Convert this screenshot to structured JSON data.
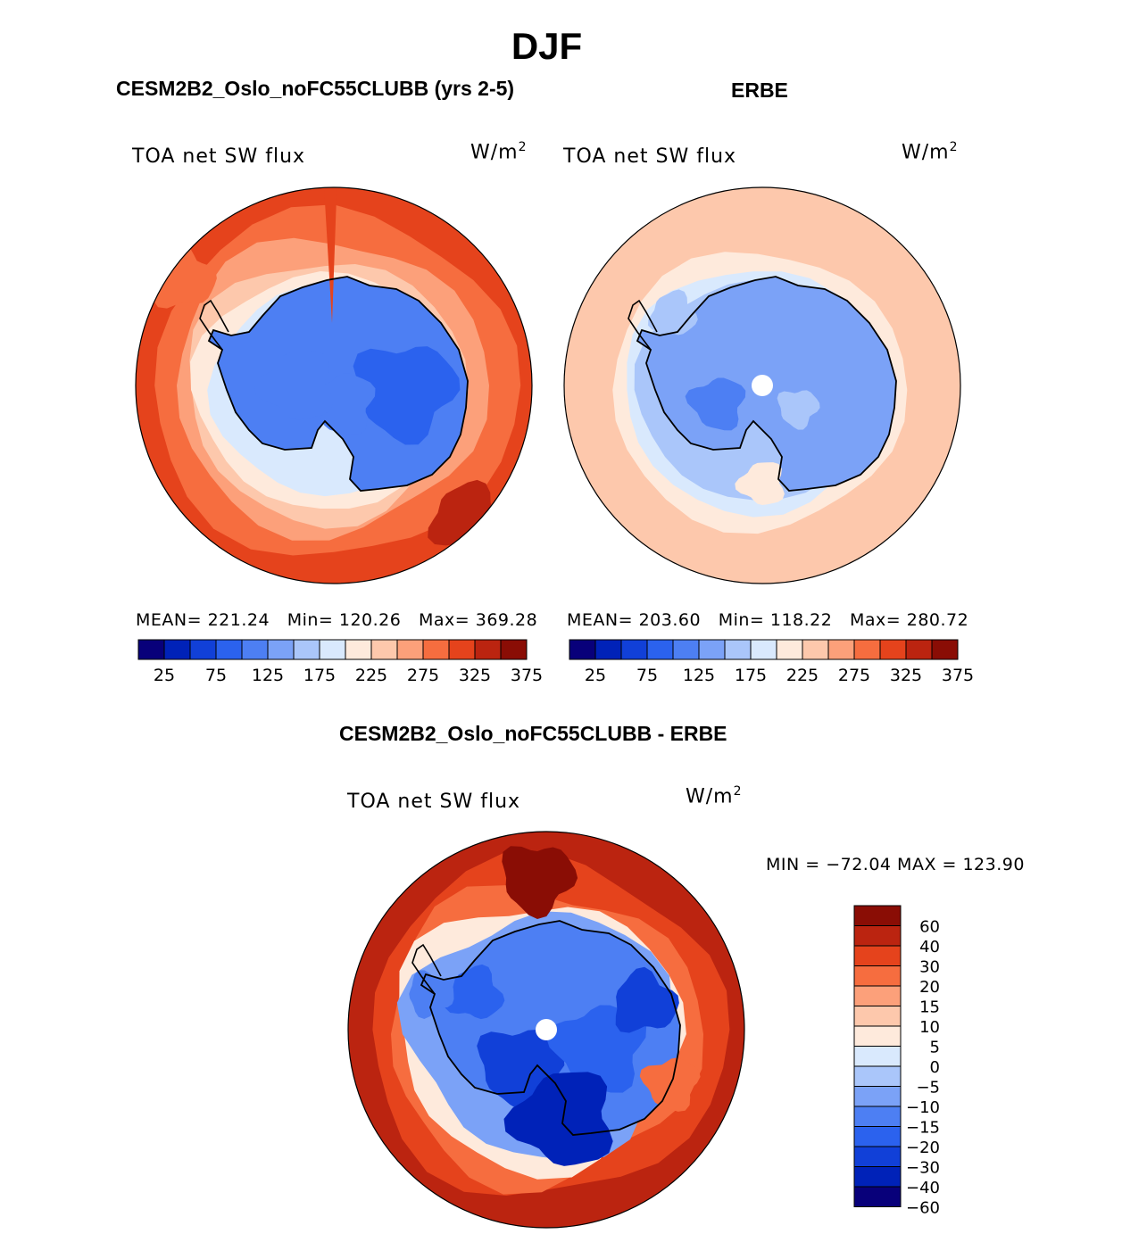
{
  "figure": {
    "season": "DJF",
    "panels": {
      "model": {
        "title": "CESM2B2_Oslo_noFC55CLUBB (yrs 2-5)",
        "variable": "TOA net SW flux",
        "units_base": "W/m",
        "units_exp": "2",
        "stats": {
          "mean_label": "MEAN=",
          "mean": "221.24",
          "min_label": "Min=",
          "min": "120.26",
          "max_label": "Max=",
          "max": "369.28"
        }
      },
      "obs": {
        "title": "ERBE",
        "variable": "TOA net SW flux",
        "units_base": "W/m",
        "units_exp": "2",
        "stats": {
          "mean_label": "MEAN=",
          "mean": "203.60",
          "min_label": "Min=",
          "min": "118.22",
          "max_label": "Max=",
          "max": "280.72"
        }
      },
      "diff": {
        "title": "CESM2B2_Oslo_noFC55CLUBB - ERBE",
        "variable": "TOA net SW flux",
        "units_base": "W/m",
        "units_exp": "2",
        "stats_text": "MIN = −72.04 MAX = 123.90"
      }
    }
  },
  "chart_data": [
    {
      "type": "heatmap",
      "projection": "south-polar-stereographic",
      "title": "CESM2B2_Oslo_noFC55CLUBB (yrs 2-5)",
      "variable": "TOA net SW flux",
      "units": "W/m2",
      "mean": 221.24,
      "min": 120.26,
      "max": 369.28,
      "colorbar": {
        "levels": [
          25,
          50,
          75,
          100,
          125,
          150,
          175,
          200,
          225,
          250,
          275,
          300,
          325,
          350,
          375
        ],
        "tick_labels": [
          "25",
          "75",
          "125",
          "175",
          "225",
          "275",
          "325",
          "375"
        ],
        "colors": [
          "#08007a",
          "#0022b8",
          "#1140d8",
          "#2b62ee",
          "#4d7ff3",
          "#7ba2f7",
          "#aac6fa",
          "#d9e9fd",
          "#feeadc",
          "#fdc8ac",
          "#fca07a",
          "#f66d3f",
          "#e5431c",
          "#bb2410",
          "#8a0d05"
        ]
      },
      "field_regions": [
        {
          "region": "Antarctic interior",
          "value_range": [
            125,
            175
          ]
        },
        {
          "region": "sea-ice margin",
          "value_range": [
            175,
            225
          ]
        },
        {
          "region": "open Southern Ocean",
          "value_range": [
            250,
            350
          ]
        },
        {
          "region": "outer ring (lower latitudes)",
          "value_range": [
            325,
            375
          ]
        }
      ]
    },
    {
      "type": "heatmap",
      "projection": "south-polar-stereographic",
      "title": "ERBE",
      "variable": "TOA net SW flux",
      "units": "W/m2",
      "mean": 203.6,
      "min": 118.22,
      "max": 280.72,
      "colorbar": {
        "levels": [
          25,
          50,
          75,
          100,
          125,
          150,
          175,
          200,
          225,
          250,
          275,
          300,
          325,
          350,
          375
        ],
        "tick_labels": [
          "25",
          "75",
          "125",
          "175",
          "225",
          "275",
          "325",
          "375"
        ],
        "colors": [
          "#08007a",
          "#0022b8",
          "#1140d8",
          "#2b62ee",
          "#4d7ff3",
          "#7ba2f7",
          "#aac6fa",
          "#d9e9fd",
          "#feeadc",
          "#fdc8ac",
          "#fca07a",
          "#f66d3f",
          "#e5431c",
          "#bb2410",
          "#8a0d05"
        ]
      },
      "field_regions": [
        {
          "region": "Antarctic interior",
          "value_range": [
            125,
            175
          ]
        },
        {
          "region": "sea-ice margin",
          "value_range": [
            175,
            225
          ]
        },
        {
          "region": "open Southern Ocean",
          "value_range": [
            225,
            275
          ]
        }
      ]
    },
    {
      "type": "heatmap",
      "projection": "south-polar-stereographic",
      "title": "CESM2B2_Oslo_noFC55CLUBB - ERBE",
      "variable": "TOA net SW flux",
      "units": "W/m2",
      "min": -72.04,
      "max": 123.9,
      "colorbar": {
        "orientation": "vertical",
        "levels": [
          60,
          40,
          30,
          20,
          15,
          10,
          5,
          0,
          -5,
          -10,
          -15,
          -20,
          -30,
          -40,
          -60
        ],
        "tick_labels": [
          "60",
          "40",
          "30",
          "20",
          "15",
          "10",
          "5",
          "0",
          "−5",
          "−10",
          "−15",
          "−20",
          "−30",
          "−40",
          "−60"
        ],
        "colors": [
          "#8a0d05",
          "#bb2410",
          "#e5431c",
          "#f66d3f",
          "#fca07a",
          "#fdc8ac",
          "#feeadc",
          "#d9e9fd",
          "#aac6fa",
          "#7ba2f7",
          "#4d7ff3",
          "#2b62ee",
          "#1140d8",
          "#0022b8",
          "#08007a"
        ]
      },
      "field_regions": [
        {
          "region": "Antarctic interior",
          "value_range": [
            -40,
            -5
          ]
        },
        {
          "region": "sea-ice margin",
          "value_range": [
            -15,
            10
          ]
        },
        {
          "region": "open Southern Ocean",
          "value_range": [
            20,
            60
          ]
        }
      ]
    }
  ]
}
